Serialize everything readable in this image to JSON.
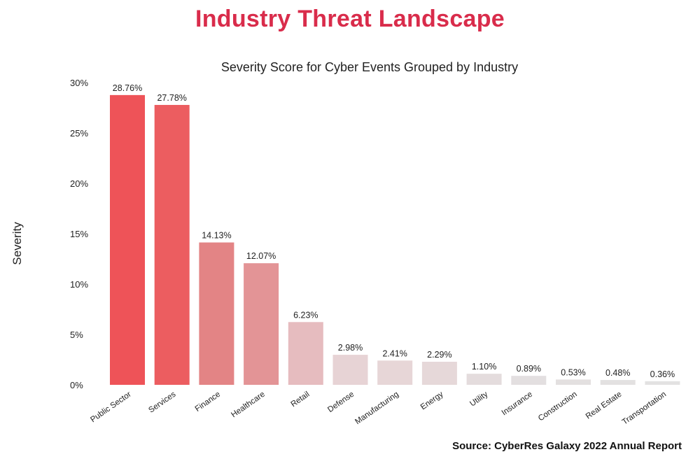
{
  "page": {
    "title": "Industry Threat Landscape",
    "source": "Source: CyberRes Galaxy 2022 Annual Report"
  },
  "colors": {
    "title": "#d92c4b",
    "bars": [
      "#ee5358",
      "#ec5d60",
      "#e38485",
      "#e39496",
      "#e6bcbf",
      "#e7d3d5",
      "#e7d6d7",
      "#e6d8d9",
      "#e4dcdd",
      "#e3dfe0",
      "#e3e0e0",
      "#e3e1e1",
      "#e3e2e2"
    ]
  },
  "chart_data": {
    "type": "bar",
    "title": "Severity Score for Cyber Events Grouped by Industry",
    "xlabel": "",
    "ylabel": "Severity",
    "ylim": [
      0,
      30
    ],
    "yticks": [
      0,
      5,
      10,
      15,
      20,
      25,
      30
    ],
    "ytick_labels": [
      "0%",
      "5%",
      "10%",
      "15%",
      "20%",
      "25%",
      "30%"
    ],
    "grid": false,
    "legend": "none",
    "categories": [
      "Public Sector",
      "Services",
      "Finance",
      "Healthcare",
      "Retail",
      "Defense",
      "Manufacturing",
      "Energy",
      "Utility",
      "Insurance",
      "Construction",
      "Real Estate",
      "Transportation"
    ],
    "values": [
      28.76,
      27.78,
      14.13,
      12.07,
      6.23,
      2.98,
      2.41,
      2.29,
      1.1,
      0.89,
      0.53,
      0.48,
      0.36
    ],
    "data_labels": [
      "28.76%",
      "27.78%",
      "14.13%",
      "12.07%",
      "6.23%",
      "2.98%",
      "2.41%",
      "2.29%",
      "1.10%",
      "0.89%",
      "0.53%",
      "0.48%",
      "0.36%"
    ]
  }
}
